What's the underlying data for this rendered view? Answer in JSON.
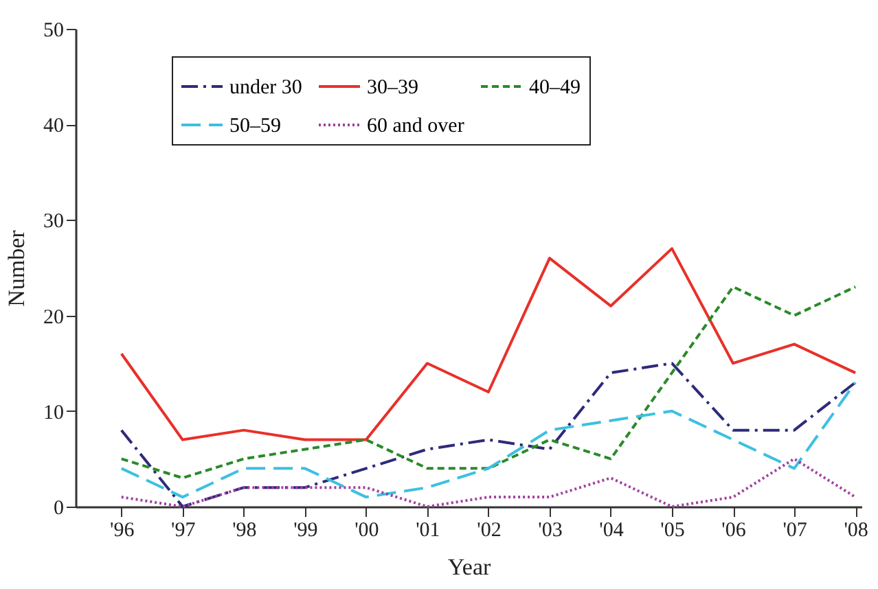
{
  "chart_data": {
    "type": "line",
    "xlabel": "Year",
    "ylabel": "Number",
    "categories": [
      "'96",
      "'97",
      "'98",
      "'99",
      "'00",
      "'01",
      "'02",
      "'03",
      "'04",
      "'05",
      "'06",
      "'07",
      "'08"
    ],
    "series": [
      {
        "name": "under 30",
        "color": "#2e2a7a",
        "line_style": "dashdot",
        "values": [
          8,
          0,
          2,
          2,
          4,
          6,
          7,
          6,
          14,
          15,
          8,
          8,
          13
        ]
      },
      {
        "name": "30–39",
        "color": "#e8302a",
        "line_style": "solid",
        "values": [
          16,
          7,
          8,
          7,
          7,
          15,
          12,
          26,
          21,
          27,
          15,
          17,
          14
        ]
      },
      {
        "name": "40–49",
        "color": "#2a8a2a",
        "line_style": "dashed",
        "values": [
          5,
          3,
          5,
          6,
          7,
          4,
          4,
          7,
          5,
          14,
          23,
          20,
          23
        ]
      },
      {
        "name": "50–59",
        "color": "#3cc0e0",
        "line_style": "longdash",
        "values": [
          4,
          1,
          4,
          4,
          1,
          2,
          4,
          8,
          9,
          10,
          7,
          4,
          13
        ]
      },
      {
        "name": "60 and over",
        "color": "#a040a0",
        "line_style": "dotted",
        "values": [
          1,
          0,
          2,
          2,
          2,
          0,
          1,
          1,
          3,
          0,
          1,
          5,
          1
        ]
      }
    ],
    "ylim": [
      0,
      50
    ],
    "yticks": [
      0,
      10,
      20,
      30,
      40,
      50
    ],
    "grid": false,
    "legend": "top",
    "marker": "none"
  }
}
